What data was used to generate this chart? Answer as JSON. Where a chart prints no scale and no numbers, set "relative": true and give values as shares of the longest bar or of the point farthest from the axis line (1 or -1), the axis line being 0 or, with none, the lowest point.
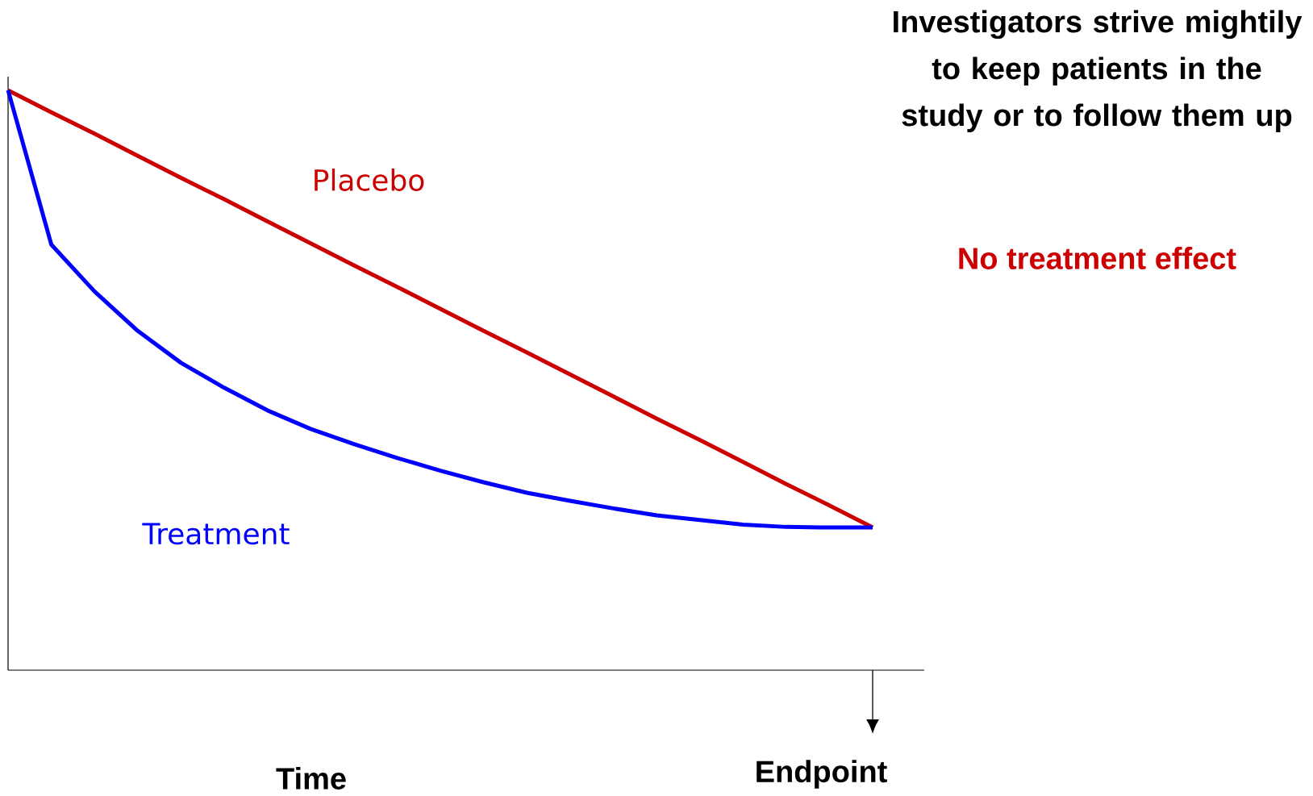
{
  "chart_data": {
    "type": "line",
    "relative": true,
    "xlabel": "Time",
    "categories": [
      null,
      null,
      null,
      null,
      null,
      null,
      null,
      null,
      null,
      null,
      null,
      null,
      null,
      null,
      null,
      null,
      null,
      null,
      null,
      null,
      null
    ],
    "series": [
      {
        "name": "Placebo",
        "color": "#cc0000",
        "values": [
          1,
          0.962,
          0.925,
          0.887,
          0.849,
          0.812,
          0.774,
          0.736,
          0.698,
          0.661,
          0.623,
          0.585,
          0.548,
          0.51,
          0.472,
          0.434,
          0.397,
          0.359,
          0.321,
          0.284,
          0.246
        ]
      },
      {
        "name": "Treatment",
        "color": "#0000ff",
        "values": [
          1,
          0.734,
          0.653,
          0.585,
          0.53,
          0.487,
          0.448,
          0.416,
          0.39,
          0.366,
          0.344,
          0.324,
          0.306,
          0.292,
          0.279,
          0.267,
          0.259,
          0.251,
          0.247,
          0.246,
          0.246
        ]
      }
    ],
    "annotations": [
      "Investigators strive mightily to keep patients in the study or to follow them up",
      "No treatment effect",
      "Endpoint"
    ],
    "marker": "none",
    "line_style": "solid"
  }
}
